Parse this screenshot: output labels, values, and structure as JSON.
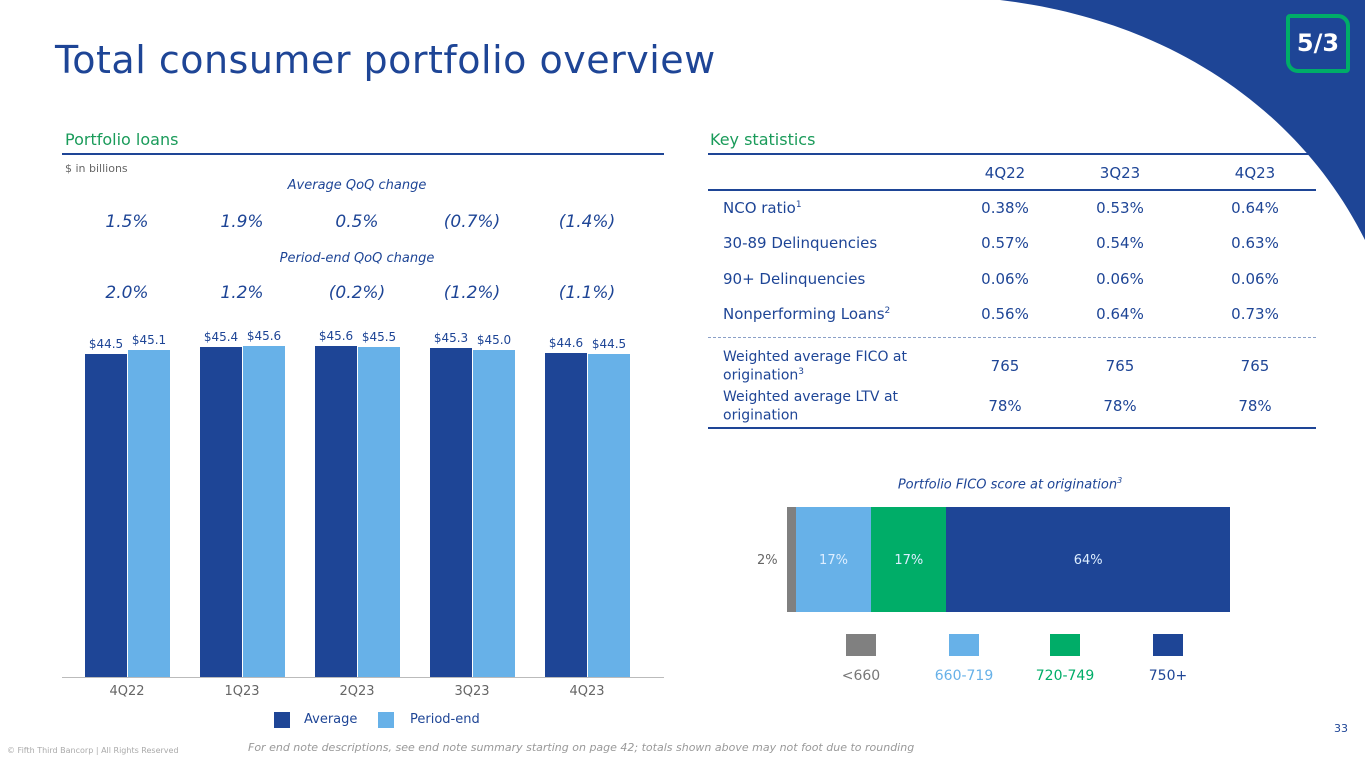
{
  "title": "Total consumer portfolio overview",
  "page_number": "33",
  "footer": {
    "copyright": "© Fifth Third Bancorp | All Rights Reserved",
    "note": "For end note descriptions, see end note summary starting on page 42; totals shown above may not foot due to rounding"
  },
  "logo": {
    "text": "5/3"
  },
  "colors": {
    "brand_blue": "#1e4596",
    "light_blue": "#67b1e8",
    "green": "#00ad68",
    "gray": "#808080",
    "section_green": "#1a9b5a"
  },
  "portfolio": {
    "heading": "Portfolio loans",
    "units": "$ in billions",
    "avg_change_label": "Average QoQ change",
    "avg_changes": [
      "1.5%",
      "1.9%",
      "0.5%",
      "(0.7%)",
      "(1.4%)"
    ],
    "pe_change_label": "Period-end QoQ change",
    "pe_changes": [
      "2.0%",
      "1.2%",
      "(0.2%)",
      "(1.2%)",
      "(1.1%)"
    ]
  },
  "chart_data": {
    "type": "bar",
    "categories": [
      "4Q22",
      "1Q23",
      "2Q23",
      "3Q23",
      "4Q23"
    ],
    "series": [
      {
        "name": "Average",
        "values": [
          44.5,
          45.4,
          45.6,
          45.3,
          44.6
        ],
        "labels": [
          "$44.5",
          "$45.4",
          "$45.6",
          "$45.3",
          "$44.6"
        ],
        "color": "#1e4596"
      },
      {
        "name": "Period-end",
        "values": [
          45.1,
          45.6,
          45.5,
          45.0,
          44.5
        ],
        "labels": [
          "$45.1",
          "$45.6",
          "$45.5",
          "$45.0",
          "$44.5"
        ],
        "color": "#67b1e8"
      }
    ],
    "ylim": [
      0,
      46
    ],
    "legend": "bottom"
  },
  "stats": {
    "heading": "Key statistics",
    "columns": [
      "4Q22",
      "3Q23",
      "4Q23"
    ],
    "rows": [
      {
        "label": "NCO ratio",
        "sup": "1",
        "values": [
          "0.38%",
          "0.53%",
          "0.64%"
        ]
      },
      {
        "label": "30-89 Delinquencies",
        "sup": "",
        "values": [
          "0.57%",
          "0.54%",
          "0.63%"
        ]
      },
      {
        "label": "90+ Delinquencies",
        "sup": "",
        "values": [
          "0.06%",
          "0.06%",
          "0.06%"
        ]
      },
      {
        "label": "Nonperforming Loans",
        "sup": "2",
        "values": [
          "0.56%",
          "0.64%",
          "0.73%"
        ]
      }
    ],
    "rows2": [
      {
        "label1": "Weighted average FICO at",
        "label2": "origination",
        "sup": "3",
        "values": [
          "765",
          "765",
          "765"
        ]
      },
      {
        "label1": "Weighted average LTV at",
        "label2": "origination",
        "sup": "",
        "values": [
          "78%",
          "78%",
          "78%"
        ]
      }
    ]
  },
  "fico": {
    "title": "Portfolio FICO score at origination",
    "title_sup": "3",
    "segments": [
      {
        "name": "<660",
        "pct": 2,
        "label": "2%",
        "color": "#808080",
        "text_color": "#1e4596"
      },
      {
        "name": "660-719",
        "pct": 17,
        "label": "17%",
        "color": "#67b1e8",
        "text_color": "#67b1e8"
      },
      {
        "name": "720-749",
        "pct": 17,
        "label": "17%",
        "color": "#00ad68",
        "text_color": "#00ad68"
      },
      {
        "name": "750+",
        "pct": 64,
        "label": "64%",
        "color": "#1e4596",
        "text_color": "#1e4596"
      }
    ]
  }
}
